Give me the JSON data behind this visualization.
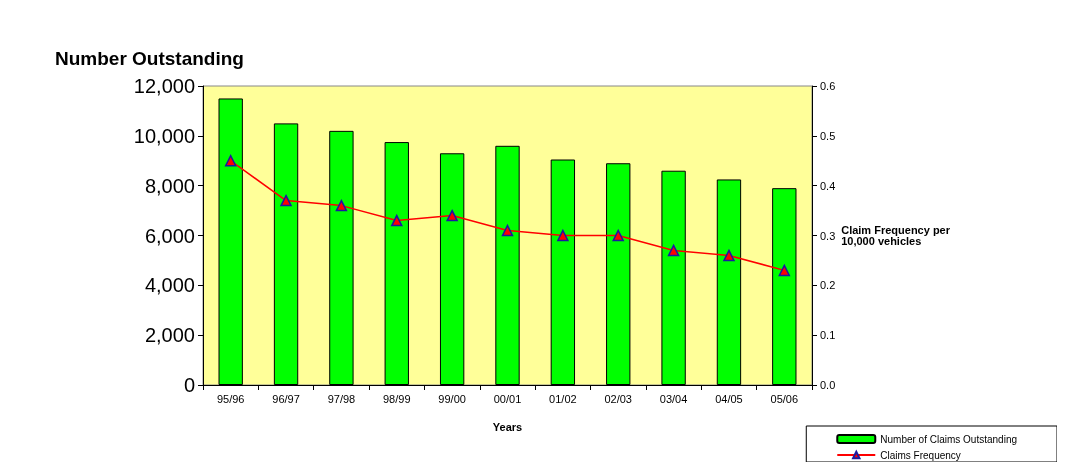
{
  "chart_data": {
    "type": "bar",
    "title": "Number Outstanding",
    "xlabel": "Years",
    "y2label": "Claim Frequency per\n10,000 vehicles",
    "categories": [
      "95/96",
      "96/97",
      "97/98",
      "98/99",
      "99/00",
      "00/01",
      "01/02",
      "02/03",
      "03/04",
      "04/05",
      "05/06"
    ],
    "series": [
      {
        "name": "Number of Claims Outstanding",
        "color": "#00ff00",
        "values": [
          11500,
          10500,
          10200,
          9750,
          9300,
          9600,
          9050,
          8900,
          8600,
          8250,
          7900
        ]
      },
      {
        "name": "Claims Frequency",
        "type": "line",
        "axis": "y2",
        "color": "#ff0000",
        "marker": "triangle",
        "values": [
          0.45,
          0.37,
          0.36,
          0.33,
          0.34,
          0.31,
          0.3,
          0.3,
          0.27,
          0.26,
          0.23
        ]
      }
    ],
    "ylim": [
      0,
      12000
    ],
    "yticks": [
      0,
      {
        "value": 2000,
        "label": "2,000"
      },
      {
        "value": 4000,
        "label": "4,000"
      },
      {
        "value": 6000,
        "label": "6,000"
      },
      {
        "value": 8000,
        "label": "8,000"
      },
      {
        "value": 10000,
        "label": "10,000"
      },
      {
        "value": 12000,
        "label": "12,000"
      }
    ],
    "y2lim": [
      0,
      0.6
    ],
    "y2ticks": [
      {
        "value": 0,
        "label": "0.0"
      },
      0.1,
      0.2,
      0.3,
      0.4,
      0.5,
      0.6
    ],
    "grid": false,
    "legend": "bottom right"
  }
}
